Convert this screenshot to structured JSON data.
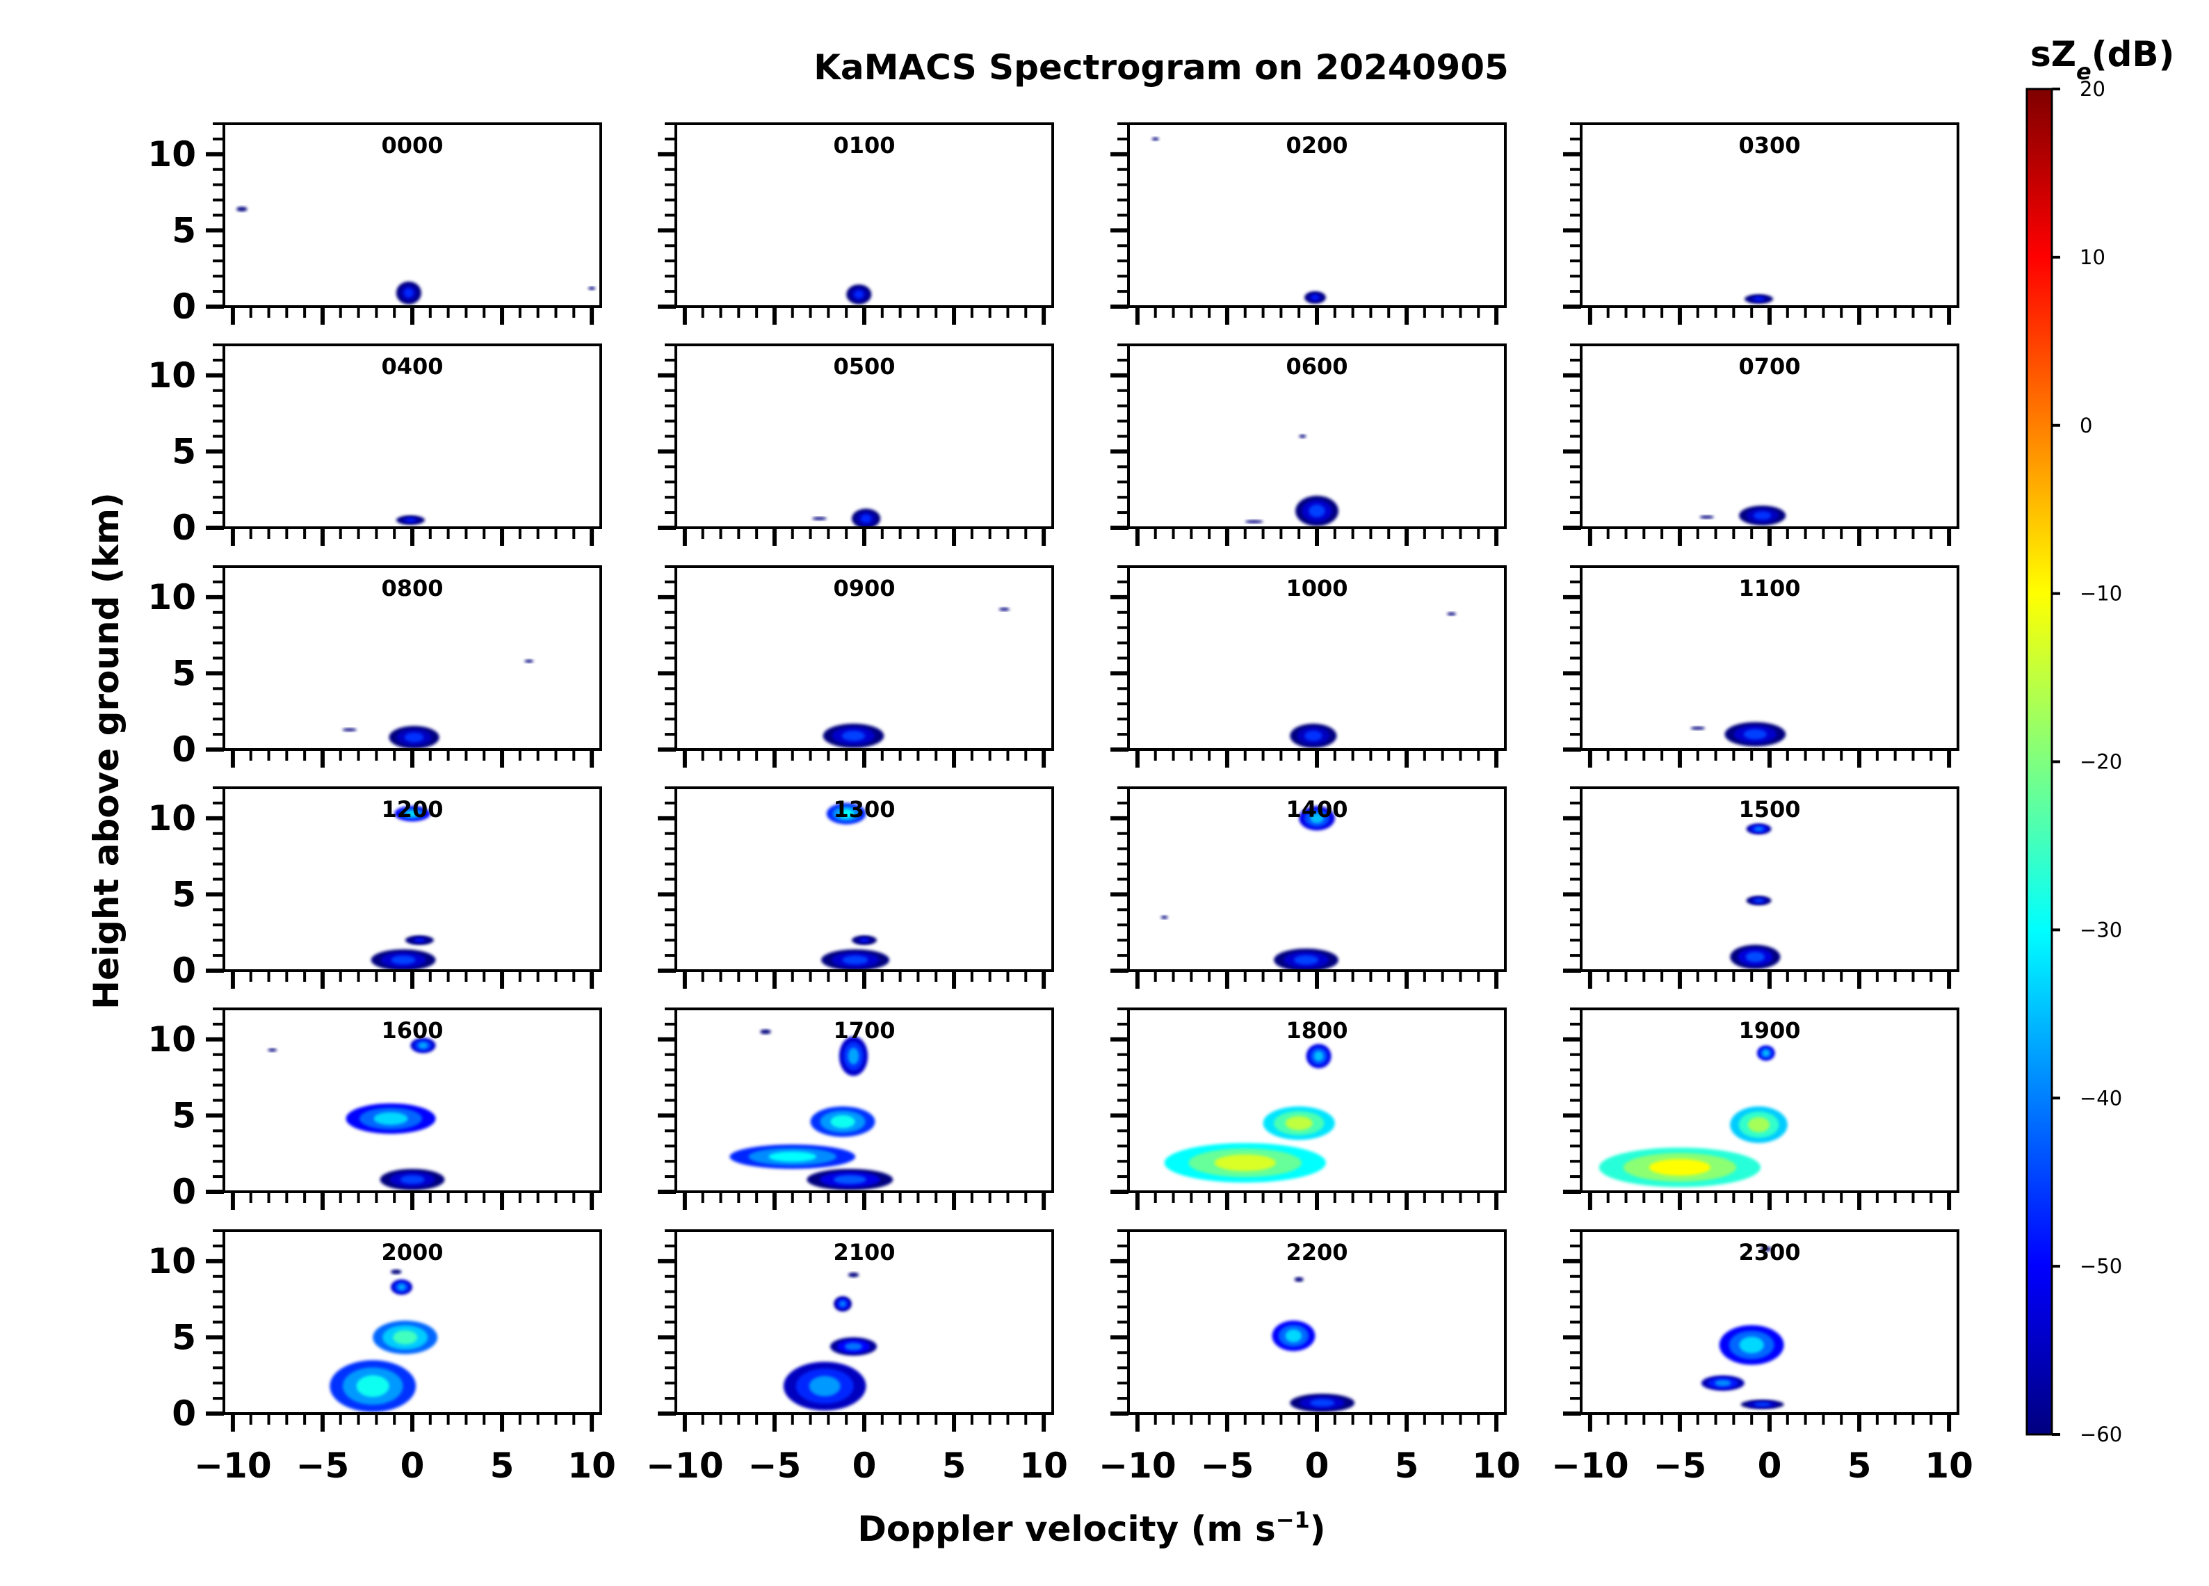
{
  "chart_data": {
    "type": "heatmap",
    "title": "KaMACS Spectrogram on 20240905",
    "xlabel": "Doppler velocity (m s⁻¹)",
    "ylabel": "Height above ground (km)",
    "xlim": [
      -10.5,
      10.5
    ],
    "ylim": [
      0,
      12
    ],
    "x_ticks": [
      "−10",
      "−5",
      "0",
      "5",
      "10"
    ],
    "x_tick_values": [
      -10,
      -5,
      0,
      5,
      10
    ],
    "y_ticks": [
      "0",
      "5",
      "10"
    ],
    "y_tick_values": [
      0,
      5,
      10
    ],
    "colorbar": {
      "label": "sZe(dB)",
      "label_main": "sZ",
      "label_sub": "e",
      "label_unit": "(dB)",
      "range": [
        -60,
        20
      ],
      "ticks": [
        "20",
        "10",
        "0",
        "−10",
        "−20",
        "−30",
        "−40",
        "−50",
        "−60"
      ],
      "tick_values": [
        20,
        10,
        0,
        -10,
        -20,
        -30,
        -40,
        -50,
        -60
      ],
      "colormap": [
        "#00007f",
        "#0000ff",
        "#007fff",
        "#00ffff",
        "#7fff7f",
        "#ffff00",
        "#ff7f00",
        "#ff0000",
        "#7f0000"
      ]
    },
    "panels": [
      {
        "label": "0000",
        "blobs": [
          {
            "v": -0.2,
            "h": 0.9,
            "w": 1.4,
            "d": 1.5,
            "dB": -52
          },
          {
            "v": -9.5,
            "h": 6.4,
            "w": 0.6,
            "d": 0.3,
            "dB": -55
          },
          {
            "v": 10,
            "h": 1.2,
            "w": 0.4,
            "d": 0.2,
            "dB": -55
          }
        ]
      },
      {
        "label": "0100",
        "blobs": [
          {
            "v": -0.3,
            "h": 0.8,
            "w": 1.4,
            "d": 1.3,
            "dB": -52
          }
        ]
      },
      {
        "label": "0200",
        "blobs": [
          {
            "v": -0.1,
            "h": 0.6,
            "w": 1.2,
            "d": 0.8,
            "dB": -53
          },
          {
            "v": -9,
            "h": 11,
            "w": 0.4,
            "d": 0.2,
            "dB": -55
          }
        ]
      },
      {
        "label": "0300",
        "blobs": [
          {
            "v": -0.6,
            "h": 0.5,
            "w": 1.6,
            "d": 0.6,
            "dB": -53
          }
        ]
      },
      {
        "label": "0400",
        "blobs": [
          {
            "v": -0.1,
            "h": 0.5,
            "w": 1.6,
            "d": 0.6,
            "dB": -53
          }
        ]
      },
      {
        "label": "0500",
        "blobs": [
          {
            "v": 0.1,
            "h": 0.6,
            "w": 1.6,
            "d": 1.3,
            "dB": -52
          },
          {
            "v": -2.5,
            "h": 0.6,
            "w": 0.8,
            "d": 0.2,
            "dB": -55
          }
        ]
      },
      {
        "label": "0600",
        "blobs": [
          {
            "v": 0,
            "h": 1.1,
            "w": 2.4,
            "d": 2.0,
            "dB": -50
          },
          {
            "v": -3.5,
            "h": 0.4,
            "w": 1.0,
            "d": 0.2,
            "dB": -55
          },
          {
            "v": -0.8,
            "h": 6,
            "w": 0.4,
            "d": 0.2,
            "dB": -55
          }
        ]
      },
      {
        "label": "0700",
        "blobs": [
          {
            "v": -0.4,
            "h": 0.8,
            "w": 2.6,
            "d": 1.3,
            "dB": -51
          },
          {
            "v": -3.5,
            "h": 0.7,
            "w": 0.8,
            "d": 0.2,
            "dB": -55
          }
        ]
      },
      {
        "label": "0800",
        "blobs": [
          {
            "v": 0.1,
            "h": 0.8,
            "w": 2.8,
            "d": 1.5,
            "dB": -51
          },
          {
            "v": -3.5,
            "h": 1.3,
            "w": 0.8,
            "d": 0.2,
            "dB": -55
          },
          {
            "v": 6.5,
            "h": 5.8,
            "w": 0.5,
            "d": 0.2,
            "dB": -55
          }
        ]
      },
      {
        "label": "0900",
        "blobs": [
          {
            "v": -0.6,
            "h": 0.9,
            "w": 3.4,
            "d": 1.6,
            "dB": -50
          },
          {
            "v": 7.8,
            "h": 9.2,
            "w": 0.6,
            "d": 0.2,
            "dB": -55
          }
        ]
      },
      {
        "label": "1000",
        "blobs": [
          {
            "v": -0.2,
            "h": 0.9,
            "w": 2.6,
            "d": 1.6,
            "dB": -51
          },
          {
            "v": 7.5,
            "h": 8.9,
            "w": 0.5,
            "d": 0.2,
            "dB": -55
          }
        ]
      },
      {
        "label": "1100",
        "blobs": [
          {
            "v": -0.8,
            "h": 1.0,
            "w": 3.4,
            "d": 1.6,
            "dB": -50
          },
          {
            "v": -4,
            "h": 1.4,
            "w": 0.8,
            "d": 0.2,
            "dB": -55
          }
        ]
      },
      {
        "label": "1200",
        "blobs": [
          {
            "v": 0,
            "h": 10.3,
            "w": 2.0,
            "d": 1.0,
            "dB": -38
          },
          {
            "v": -0.5,
            "h": 0.7,
            "w": 3.6,
            "d": 1.4,
            "dB": -50
          },
          {
            "v": 0.4,
            "h": 2.0,
            "w": 1.6,
            "d": 0.6,
            "dB": -54
          }
        ]
      },
      {
        "label": "1300",
        "blobs": [
          {
            "v": -1.0,
            "h": 10.3,
            "w": 2.2,
            "d": 1.4,
            "dB": -35
          },
          {
            "v": -0.5,
            "h": 0.7,
            "w": 3.8,
            "d": 1.4,
            "dB": -50
          },
          {
            "v": 0,
            "h": 2.0,
            "w": 1.4,
            "d": 0.6,
            "dB": -54
          }
        ]
      },
      {
        "label": "1400",
        "blobs": [
          {
            "v": 0,
            "h": 10.0,
            "w": 2.0,
            "d": 1.6,
            "dB": -40
          },
          {
            "v": -0.6,
            "h": 0.7,
            "w": 3.6,
            "d": 1.5,
            "dB": -50
          },
          {
            "v": -8.5,
            "h": 3.5,
            "w": 0.4,
            "d": 0.2,
            "dB": -55
          }
        ]
      },
      {
        "label": "1500",
        "blobs": [
          {
            "v": -0.6,
            "h": 9.3,
            "w": 1.4,
            "d": 0.7,
            "dB": -45
          },
          {
            "v": -0.6,
            "h": 4.6,
            "w": 1.4,
            "d": 0.6,
            "dB": -50
          },
          {
            "v": -0.8,
            "h": 0.9,
            "w": 2.8,
            "d": 1.6,
            "dB": -49
          }
        ]
      },
      {
        "label": "1600",
        "blobs": [
          {
            "v": -1.2,
            "h": 4.8,
            "w": 5.0,
            "d": 2.0,
            "dB": -38
          },
          {
            "v": 0.6,
            "h": 9.6,
            "w": 1.4,
            "d": 1.0,
            "dB": -42
          },
          {
            "v": 0,
            "h": 0.8,
            "w": 3.6,
            "d": 1.4,
            "dB": -50
          },
          {
            "v": -7.8,
            "h": 9.3,
            "w": 0.5,
            "d": 0.2,
            "dB": -55
          }
        ]
      },
      {
        "label": "1700",
        "blobs": [
          {
            "v": -4.0,
            "h": 2.3,
            "w": 7.0,
            "d": 1.6,
            "dB": -35
          },
          {
            "v": -1.2,
            "h": 4.6,
            "w": 3.6,
            "d": 2.0,
            "dB": -34
          },
          {
            "v": -0.8,
            "h": 0.8,
            "w": 4.8,
            "d": 1.4,
            "dB": -48
          },
          {
            "v": -0.6,
            "h": 8.9,
            "w": 1.6,
            "d": 2.6,
            "dB": -42
          },
          {
            "v": -5.5,
            "h": 10.5,
            "w": 0.6,
            "d": 0.3,
            "dB": -55
          }
        ]
      },
      {
        "label": "1800",
        "blobs": [
          {
            "v": -4.0,
            "h": 1.9,
            "w": 9.0,
            "d": 2.6,
            "dB": -18
          },
          {
            "v": -1.0,
            "h": 4.5,
            "w": 4.0,
            "d": 2.2,
            "dB": -20
          },
          {
            "v": 0.1,
            "h": 8.9,
            "w": 1.4,
            "d": 1.6,
            "dB": -40
          }
        ]
      },
      {
        "label": "1900",
        "blobs": [
          {
            "v": -5.0,
            "h": 1.6,
            "w": 9.0,
            "d": 2.6,
            "dB": -15
          },
          {
            "v": -0.6,
            "h": 4.4,
            "w": 3.2,
            "d": 2.4,
            "dB": -22
          },
          {
            "v": -0.2,
            "h": 9.1,
            "w": 1.0,
            "d": 1.0,
            "dB": -40
          }
        ]
      },
      {
        "label": "2000",
        "blobs": [
          {
            "v": -2.2,
            "h": 1.8,
            "w": 4.8,
            "d": 3.4,
            "dB": -34
          },
          {
            "v": -0.4,
            "h": 5.0,
            "w": 3.6,
            "d": 2.2,
            "dB": -30
          },
          {
            "v": -0.6,
            "h": 8.3,
            "w": 1.2,
            "d": 1.0,
            "dB": -42
          },
          {
            "v": -0.9,
            "h": 9.3,
            "w": 0.6,
            "d": 0.3,
            "dB": -52
          }
        ]
      },
      {
        "label": "2100",
        "blobs": [
          {
            "v": -2.2,
            "h": 1.8,
            "w": 4.6,
            "d": 3.2,
            "dB": -43
          },
          {
            "v": -0.6,
            "h": 4.4,
            "w": 2.6,
            "d": 1.2,
            "dB": -46
          },
          {
            "v": -1.2,
            "h": 7.2,
            "w": 1.0,
            "d": 1.0,
            "dB": -45
          },
          {
            "v": -0.6,
            "h": 9.1,
            "w": 0.6,
            "d": 0.3,
            "dB": -52
          }
        ]
      },
      {
        "label": "2200",
        "blobs": [
          {
            "v": -1.3,
            "h": 5.1,
            "w": 2.4,
            "d": 2.0,
            "dB": -38
          },
          {
            "v": 0.3,
            "h": 0.7,
            "w": 3.6,
            "d": 1.2,
            "dB": -50
          },
          {
            "v": -1.0,
            "h": 8.8,
            "w": 0.5,
            "d": 0.3,
            "dB": -52
          }
        ]
      },
      {
        "label": "2300",
        "blobs": [
          {
            "v": -1.0,
            "h": 4.5,
            "w": 3.6,
            "d": 2.6,
            "dB": -38
          },
          {
            "v": -2.6,
            "h": 2.0,
            "w": 2.4,
            "d": 1.0,
            "dB": -44
          },
          {
            "v": -0.4,
            "h": 0.6,
            "w": 2.4,
            "d": 0.6,
            "dB": -50
          },
          {
            "v": -0.2,
            "h": 10.8,
            "w": 0.6,
            "d": 0.3,
            "dB": -52
          }
        ]
      }
    ]
  }
}
